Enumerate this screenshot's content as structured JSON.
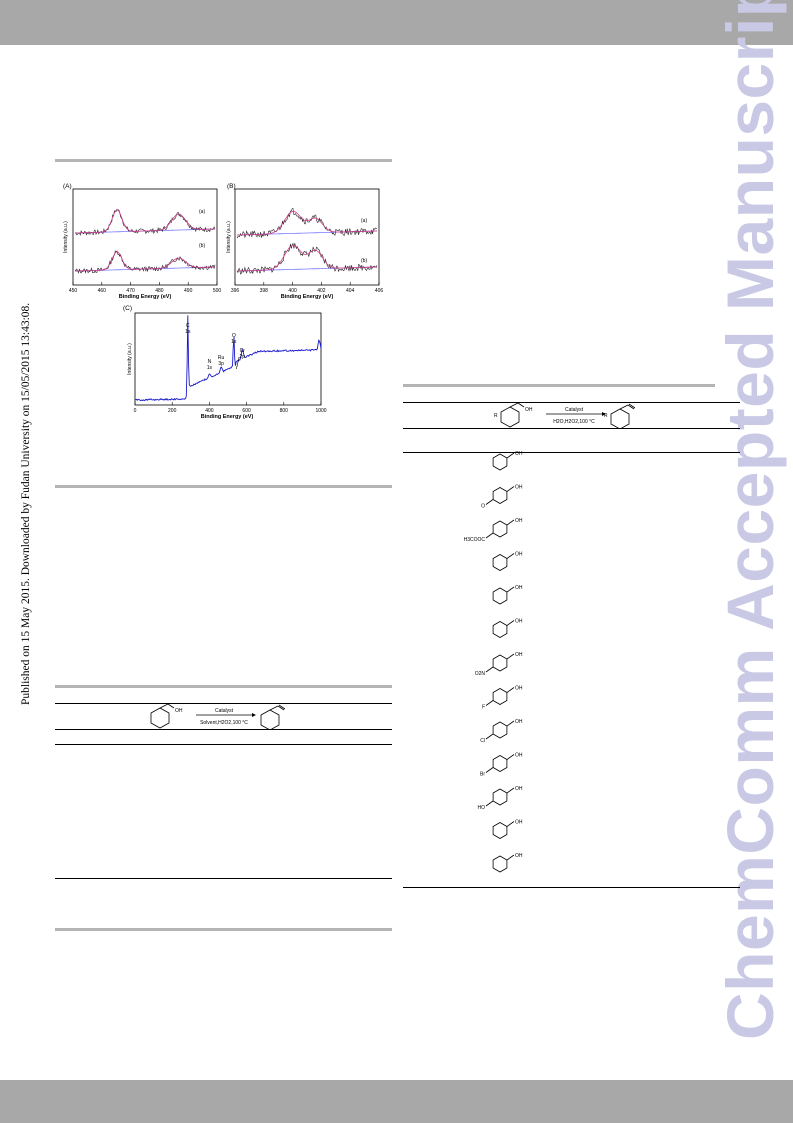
{
  "watermark": "ChemComm Accepted Manuscript",
  "side_note": "Published on 15 May 2015. Downloaded by Fudan University on 15/05/2015 13:43:08.",
  "figure": {
    "panel_a": {
      "label": "(A)",
      "ylabel": "Intensity (a.u.)",
      "xlabel": "Binding Energy (eV)",
      "ticks": [
        "450",
        "460",
        "470",
        "480",
        "490",
        "500"
      ],
      "trace_labels": [
        "(a)",
        "(b)"
      ]
    },
    "panel_b": {
      "label": "(B)",
      "ylabel": "Intensity (a.u.)",
      "xlabel": "Binding Energy (eV)",
      "ticks": [
        "396",
        "398",
        "400",
        "402",
        "404",
        "406"
      ],
      "trace_labels": [
        "(a)",
        "(b)"
      ]
    },
    "panel_c": {
      "label": "(C)",
      "ylabel": "Intensity (a.u.)",
      "xlabel": "Binding Energy (eV)",
      "ticks": [
        "0",
        "200",
        "400",
        "600",
        "800",
        "1000"
      ],
      "peaks": [
        {
          "l1": "C",
          "l2": "1s"
        },
        {
          "l1": "N",
          "l2": "1s"
        },
        {
          "l1": "Ru",
          "l2": "3p"
        },
        {
          "l1": "O",
          "l2": "1s"
        },
        {
          "l1": "Cr",
          "l2": "2p"
        }
      ]
    }
  },
  "chart_data": [
    {
      "type": "line",
      "panel": "A",
      "xlabel": "Binding Energy (eV)",
      "ylabel": "Intensity (a.u.)",
      "xlim": [
        450,
        500
      ],
      "series": [
        {
          "name": "(a)",
          "peaks": [
            465,
            487
          ]
        },
        {
          "name": "(b)",
          "peaks": [
            465,
            487
          ]
        }
      ]
    },
    {
      "type": "line",
      "panel": "B",
      "xlabel": "Binding Energy (eV)",
      "ylabel": "Intensity (a.u.)",
      "xlim": [
        396,
        406
      ],
      "series": [
        {
          "name": "(a)",
          "peaks": [
            399.9,
            401.6
          ]
        },
        {
          "name": "(b)",
          "peaks": [
            399.9,
            401.6
          ]
        }
      ]
    },
    {
      "type": "line",
      "panel": "C",
      "xlabel": "Binding Energy (eV)",
      "ylabel": "Intensity (a.u.)",
      "xlim": [
        0,
        1000
      ],
      "peaks": [
        {
          "label": "C 1s",
          "x": 284
        },
        {
          "label": "N 1s",
          "x": 400
        },
        {
          "label": "Ru 3p",
          "x": 463
        },
        {
          "label": "O 1s",
          "x": 531
        },
        {
          "label": "Cr 2p",
          "x": 577
        }
      ]
    }
  ],
  "table_left": {
    "reaction": {
      "catalyst": "Catalyst",
      "conditions": "Solvent,H2O2,100 °C",
      "oh": "OH"
    }
  },
  "table_right": {
    "reaction": {
      "catalyst": "Catalyst",
      "conditions": "H2O,H2O2,100 °C",
      "r": "R",
      "oh": "OH"
    },
    "substrates": [
      {
        "name": "benzyl-alcohol",
        "labels": [
          "OH"
        ]
      },
      {
        "name": "4-methoxybenzyl-alcohol",
        "labels": [
          "OH",
          "O"
        ]
      },
      {
        "name": "methyl-4-hydroxymethylbenzoate",
        "labels": [
          "OH",
          "H3COOC"
        ]
      },
      {
        "name": "4-methylbenzyl-alcohol",
        "labels": [
          "OH"
        ]
      },
      {
        "name": "3-methylbenzyl-alcohol",
        "labels": [
          "OH"
        ]
      },
      {
        "name": "2-methylbenzyl-alcohol",
        "labels": [
          "OH"
        ]
      },
      {
        "name": "4-nitrobenzyl-alcohol",
        "labels": [
          "OH",
          "O2N"
        ]
      },
      {
        "name": "4-fluorobenzyl-alcohol",
        "labels": [
          "OH",
          "F"
        ]
      },
      {
        "name": "4-chlorobenzyl-alcohol",
        "labels": [
          "OH",
          "Cl"
        ]
      },
      {
        "name": "4-bromobenzyl-alcohol",
        "labels": [
          "OH",
          "Br"
        ]
      },
      {
        "name": "1-4-benzenedimethanol",
        "labels": [
          "OH",
          "HO"
        ]
      },
      {
        "name": "1-naphthalenemethanol",
        "labels": [
          "OH"
        ]
      },
      {
        "name": "9-anthracenemethanol",
        "labels": [
          "OH"
        ]
      }
    ]
  },
  "colors": {
    "band": "#a8a8a8",
    "rule": "#b5b5b5",
    "watermark": "#c9c9e6",
    "spectrum": "#1a1acc"
  }
}
